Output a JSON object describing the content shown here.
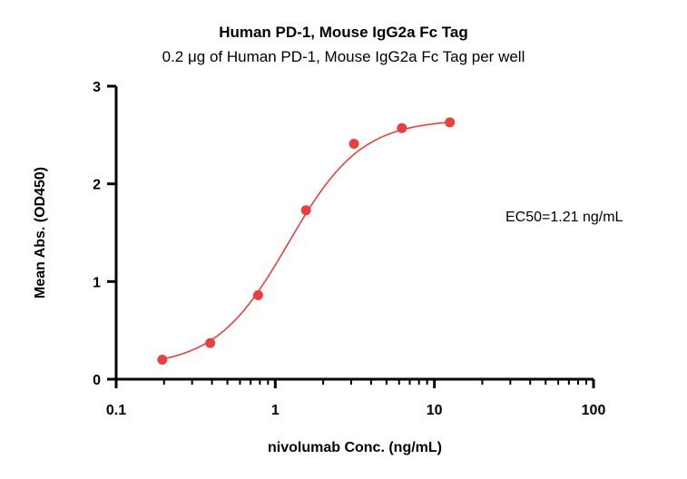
{
  "chart_data": {
    "type": "scatter",
    "title": "Human PD-1, Mouse IgG2a Fc Tag",
    "subtitle": "0.2 μg of Human PD-1, Mouse IgG2a Fc Tag per well",
    "xlabel": "nivolumab Conc. (ng/mL)",
    "ylabel": "Mean Abs. (OD450)",
    "xscale": "log",
    "xlim": [
      0.1,
      100
    ],
    "ylim": [
      0,
      3
    ],
    "x_ticks": [
      0.1,
      1,
      10,
      100
    ],
    "x_tick_labels": [
      "0.1",
      "1",
      "10",
      "100"
    ],
    "y_ticks": [
      0,
      1,
      2,
      3
    ],
    "y_tick_labels": [
      "0",
      "1",
      "2",
      "3"
    ],
    "grid": false,
    "legend": "none",
    "series": [
      {
        "color": "#e8403f",
        "x": [
          0.195,
          0.39,
          0.78,
          1.56,
          3.125,
          6.25,
          12.5
        ],
        "y": [
          0.2,
          0.37,
          0.86,
          1.73,
          2.41,
          2.57,
          2.63
        ],
        "fit": "4PL",
        "fit_params": {
          "bottom": 0.13,
          "top": 2.66,
          "ec50": 1.21,
          "hill": 1.9
        }
      }
    ],
    "annotations": [
      {
        "text": "EC50=1.21 ng/mL"
      }
    ]
  }
}
